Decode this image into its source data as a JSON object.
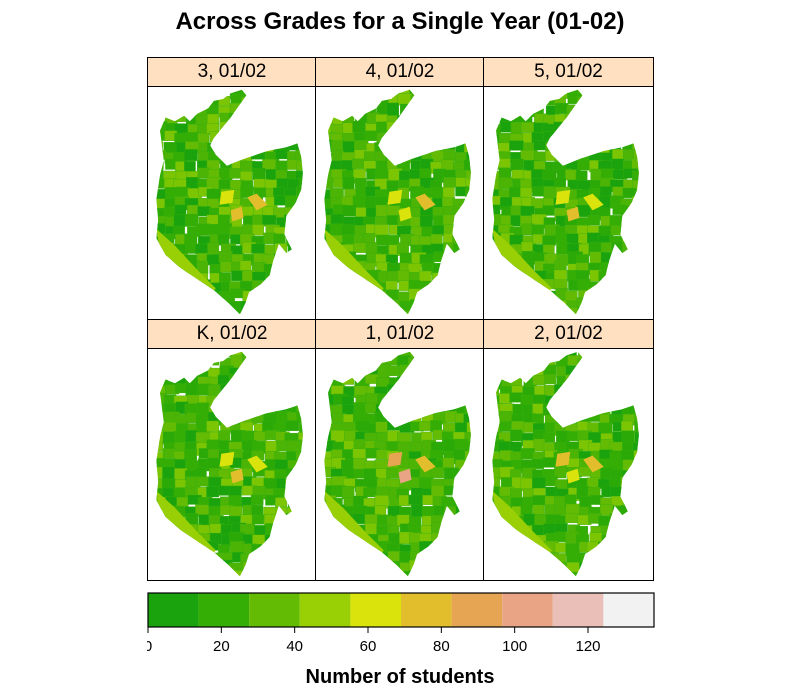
{
  "title": "Across Grades for a Single Year (01-02)",
  "chart_data": {
    "type": "heatmap",
    "subtype": "choropleth-map-panels",
    "title": "Across Grades for a Single Year (01-02)",
    "layout": "3 columns x 2 rows",
    "panels": [
      {
        "label": "3, 01/02",
        "grade": "3",
        "year": "01/02",
        "hotspots": [
          {
            "region": "center-left",
            "value": 62
          },
          {
            "region": "center",
            "value": 76
          },
          {
            "region": "center-right",
            "value": 70
          }
        ]
      },
      {
        "label": "4, 01/02",
        "grade": "4",
        "year": "01/02",
        "hotspots": [
          {
            "region": "center-left",
            "value": 58
          },
          {
            "region": "center",
            "value": 64
          },
          {
            "region": "center-right",
            "value": 72
          }
        ]
      },
      {
        "label": "5, 01/02",
        "grade": "5",
        "year": "01/02",
        "hotspots": [
          {
            "region": "center-left",
            "value": 56
          },
          {
            "region": "center",
            "value": 74
          },
          {
            "region": "center-right",
            "value": 60
          }
        ]
      },
      {
        "label": "K, 01/02",
        "grade": "K",
        "year": "01/02",
        "hotspots": [
          {
            "region": "center-left",
            "value": 62
          },
          {
            "region": "center",
            "value": 80
          },
          {
            "region": "center-right",
            "value": 66
          }
        ]
      },
      {
        "label": "1, 01/02",
        "grade": "1",
        "year": "01/02",
        "hotspots": [
          {
            "region": "center-left",
            "value": 84
          },
          {
            "region": "center",
            "value": 104
          },
          {
            "region": "center-right",
            "value": 70
          }
        ]
      },
      {
        "label": "2, 01/02",
        "grade": "2",
        "year": "01/02",
        "hotspots": [
          {
            "region": "center-left",
            "value": 78
          },
          {
            "region": "center",
            "value": 66
          },
          {
            "region": "center-right",
            "value": 72
          }
        ]
      }
    ],
    "colorkey": {
      "label": "Number of students",
      "range": [
        0,
        138
      ],
      "breaks": [
        0,
        13.8,
        27.6,
        41.4,
        55.2,
        69,
        82.8,
        96.6,
        110.4,
        124.2,
        138
      ],
      "colors": [
        "#1aa30c",
        "#34ad04",
        "#63bc03",
        "#99cf05",
        "#dae30b",
        "#e2be2d",
        "#e6a552",
        "#e8a484",
        "#eabfb8",
        "#f2f2f2"
      ],
      "ticks": [
        0,
        20,
        40,
        60,
        80,
        100,
        120
      ]
    }
  }
}
